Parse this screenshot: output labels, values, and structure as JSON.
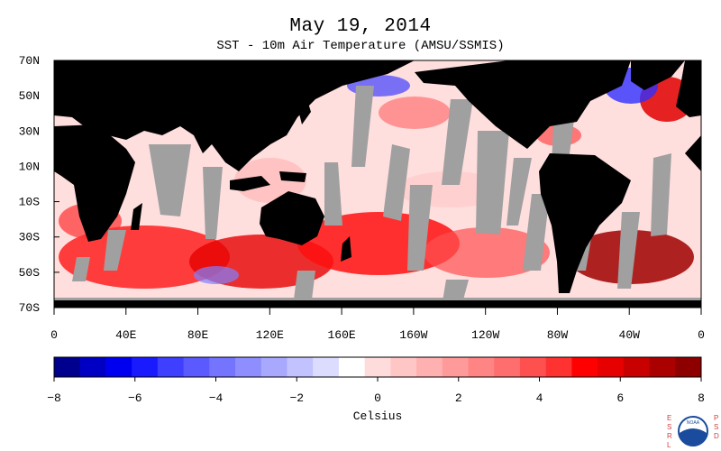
{
  "title": "May 19, 2014",
  "subtitle": "SST - 10m Air Temperature (AMSU/SSMIS)",
  "lat_labels": [
    "70N",
    "50N",
    "30N",
    "10N",
    "10S",
    "30S",
    "50S",
    "70S"
  ],
  "lon_labels": [
    "0",
    "40E",
    "80E",
    "120E",
    "160E",
    "160W",
    "120W",
    "80W",
    "40W",
    "0"
  ],
  "colorbar": {
    "unit_label": "Celsius",
    "tick_labels": [
      "-8",
      "-6",
      "-4",
      "-2",
      "0",
      "2",
      "4",
      "6",
      "8"
    ],
    "colors": [
      "#00008e",
      "#0000c4",
      "#0000f0",
      "#1a1aff",
      "#3f3fff",
      "#5a5aff",
      "#7474ff",
      "#8e8eff",
      "#a8a8ff",
      "#c2c2ff",
      "#dcdcff",
      "#ffffff",
      "#ffdcdc",
      "#ffc6c6",
      "#ffb0b0",
      "#ff9a9a",
      "#ff8484",
      "#ff6e6e",
      "#ff5050",
      "#ff3232",
      "#ff0000",
      "#e60000",
      "#c80000",
      "#aa0000",
      "#8e0000"
    ]
  },
  "map_colors": {
    "land": "#000000",
    "no_data": "#a0a0a0",
    "ocean_base": "#ffdede"
  },
  "logo": {
    "left_text": "ESRL",
    "right_text": "PSD",
    "name": "NOAA"
  }
}
